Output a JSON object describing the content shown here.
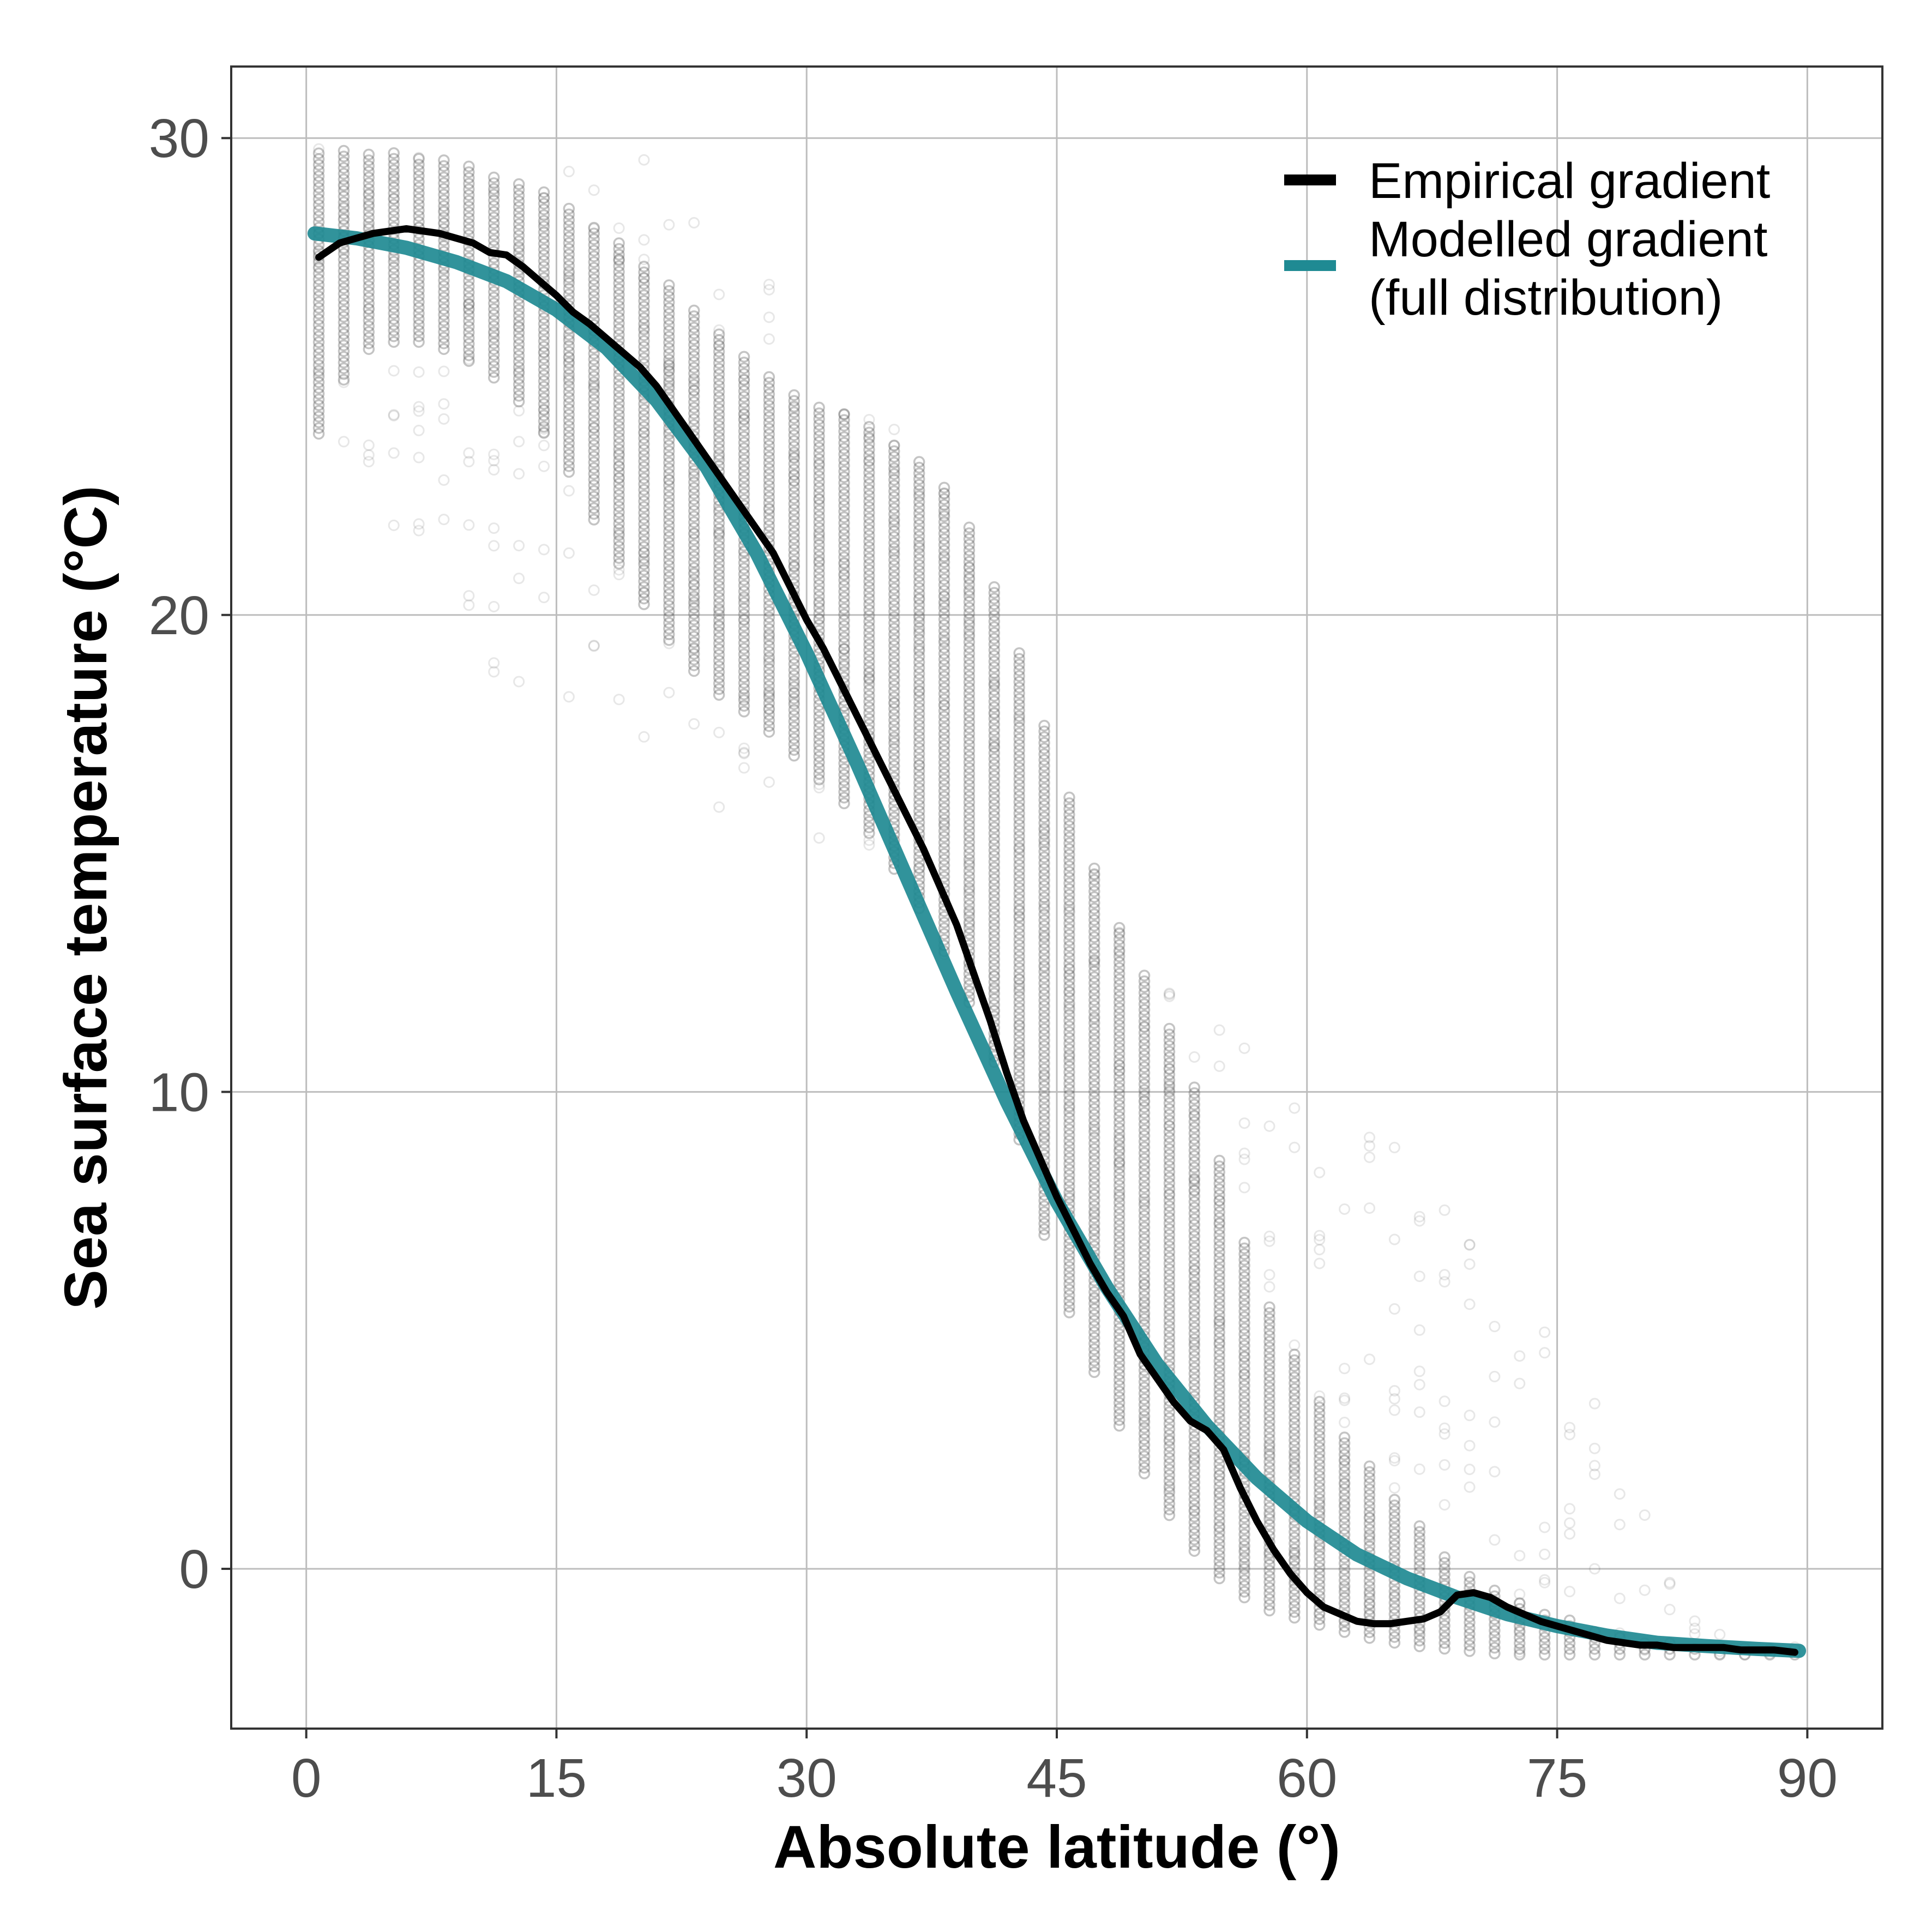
{
  "chart_data": {
    "type": "scatter",
    "xlabel": "Absolute latitude (°)",
    "ylabel": "Sea surface temperature (°C)",
    "xlim": [
      -4.5,
      94.5
    ],
    "ylim": [
      -3.35,
      31.5
    ],
    "xticks": [
      0,
      15,
      30,
      45,
      60,
      75,
      90
    ],
    "yticks": [
      0,
      10,
      20,
      30
    ],
    "x_tick_labels": [
      "0",
      "15",
      "30",
      "45",
      "60",
      "75",
      "90"
    ],
    "y_tick_labels": [
      "0",
      "10",
      "20",
      "30"
    ],
    "grid": true,
    "legend_position": "top-right",
    "point_color": "#555555",
    "scatter_bands": {
      "x_step": 1.5,
      "description_free": true,
      "lat": [
        0.75,
        3,
        6,
        9,
        12,
        15,
        18,
        21,
        24,
        27,
        30,
        33,
        36,
        39,
        42,
        45,
        48,
        51,
        54,
        57,
        60,
        63,
        66,
        69,
        72,
        75,
        78,
        81,
        84,
        87,
        89.25
      ],
      "dense_min": [
        23.8,
        25.5,
        25.8,
        25.5,
        24.8,
        23.5,
        21.5,
        19.8,
        18.5,
        17.8,
        16.8,
        15.8,
        14.3,
        12.5,
        10.0,
        6.0,
        3.5,
        1.5,
        0.0,
        -0.8,
        -1.1,
        -1.4,
        -1.6,
        -1.7,
        -1.8,
        -1.8,
        -1.8,
        -1.8,
        -1.8,
        -1.8,
        -1.8
      ],
      "dense_max": [
        29.8,
        29.8,
        29.7,
        29.5,
        29.2,
        28.8,
        28.0,
        27.2,
        26.2,
        25.2,
        24.5,
        24.2,
        23.5,
        22.5,
        20.0,
        17.0,
        14.0,
        12.0,
        9.5,
        6.0,
        4.0,
        2.5,
        1.2,
        0.0,
        -0.5,
        -1.0,
        -1.3,
        -1.5,
        -1.7,
        -1.7,
        -1.7
      ],
      "sparse_min": [
        23.0,
        22.0,
        20.5,
        19.5,
        18.5,
        18.0,
        18.5,
        17.0,
        16.0,
        15.5,
        15.0,
        15.0,
        14.5,
        12.0,
        9.5,
        7.5,
        4.5,
        2.0,
        0.5,
        -0.5,
        -1.0,
        -1.4,
        -1.6,
        -1.7,
        -1.8,
        -1.8,
        -1.8,
        -1.8,
        -1.8,
        -1.8,
        -1.8
      ],
      "sparse_max": [
        29.8,
        29.9,
        29.9,
        29.7,
        29.4,
        29.2,
        29.8,
        29.5,
        28.3,
        27.5,
        26.0,
        24.5,
        23.8,
        22.8,
        19.5,
        16.5,
        14.0,
        12.5,
        11.5,
        11.0,
        10.5,
        10.0,
        9.0,
        7.5,
        6.0,
        5.0,
        3.5,
        0.5,
        -1.3,
        -1.5,
        -1.6
      ]
    },
    "series": [
      {
        "name": "Empirical gradient",
        "color": "#000000",
        "x": [
          0.75,
          2,
          4,
          6,
          8,
          10,
          11,
          12,
          13,
          14,
          15,
          16,
          17,
          18,
          19,
          20,
          21,
          22,
          23,
          24,
          25,
          26,
          27,
          28,
          29,
          30,
          31,
          32,
          33,
          34,
          35,
          36,
          37,
          38,
          39,
          40,
          41,
          42,
          43,
          44,
          45,
          46,
          47,
          48,
          49,
          50,
          51,
          52,
          53,
          54,
          55,
          56,
          57,
          58,
          59,
          60,
          61,
          62,
          63,
          64,
          65,
          66,
          67,
          68,
          69,
          70,
          71,
          72,
          73,
          74,
          75,
          76,
          77,
          78,
          79,
          80,
          81,
          82,
          83,
          84,
          85,
          86,
          87,
          88,
          89.25
        ],
        "y": [
          27.5,
          27.8,
          28.0,
          28.1,
          28.0,
          27.8,
          27.6,
          27.55,
          27.3,
          27.0,
          26.7,
          26.35,
          26.1,
          25.8,
          25.5,
          25.2,
          24.8,
          24.3,
          23.8,
          23.3,
          22.8,
          22.3,
          21.8,
          21.3,
          20.6,
          19.9,
          19.3,
          18.6,
          17.9,
          17.2,
          16.5,
          15.8,
          15.1,
          14.3,
          13.5,
          12.5,
          11.5,
          10.4,
          9.4,
          8.6,
          7.8,
          7.1,
          6.4,
          5.8,
          5.3,
          4.5,
          4.0,
          3.5,
          3.1,
          2.9,
          2.5,
          1.7,
          1.0,
          0.4,
          -0.1,
          -0.5,
          -0.8,
          -0.95,
          -1.1,
          -1.15,
          -1.15,
          -1.1,
          -1.05,
          -0.9,
          -0.55,
          -0.5,
          -0.6,
          -0.8,
          -0.95,
          -1.1,
          -1.2,
          -1.3,
          -1.4,
          -1.5,
          -1.55,
          -1.6,
          -1.6,
          -1.65,
          -1.65,
          -1.65,
          -1.65,
          -1.7,
          -1.7,
          -1.7,
          -1.75
        ]
      },
      {
        "name": "Modelled gradient\n(full distribution)",
        "color": "#1f8a93",
        "x": [
          0.5,
          3,
          6,
          9,
          12,
          15,
          18,
          21,
          24,
          27,
          30,
          33,
          36,
          39,
          42,
          45,
          48,
          51,
          54,
          57,
          60,
          63,
          66,
          69,
          72,
          75,
          78,
          81,
          84,
          87,
          89.5
        ],
        "y": [
          28.0,
          27.9,
          27.7,
          27.4,
          27.0,
          26.4,
          25.6,
          24.5,
          23.1,
          21.3,
          19.2,
          16.9,
          14.5,
          12.1,
          9.8,
          7.7,
          5.9,
          4.3,
          3.0,
          1.9,
          1.0,
          0.3,
          -0.2,
          -0.6,
          -0.95,
          -1.2,
          -1.4,
          -1.55,
          -1.62,
          -1.68,
          -1.72
        ]
      }
    ]
  }
}
